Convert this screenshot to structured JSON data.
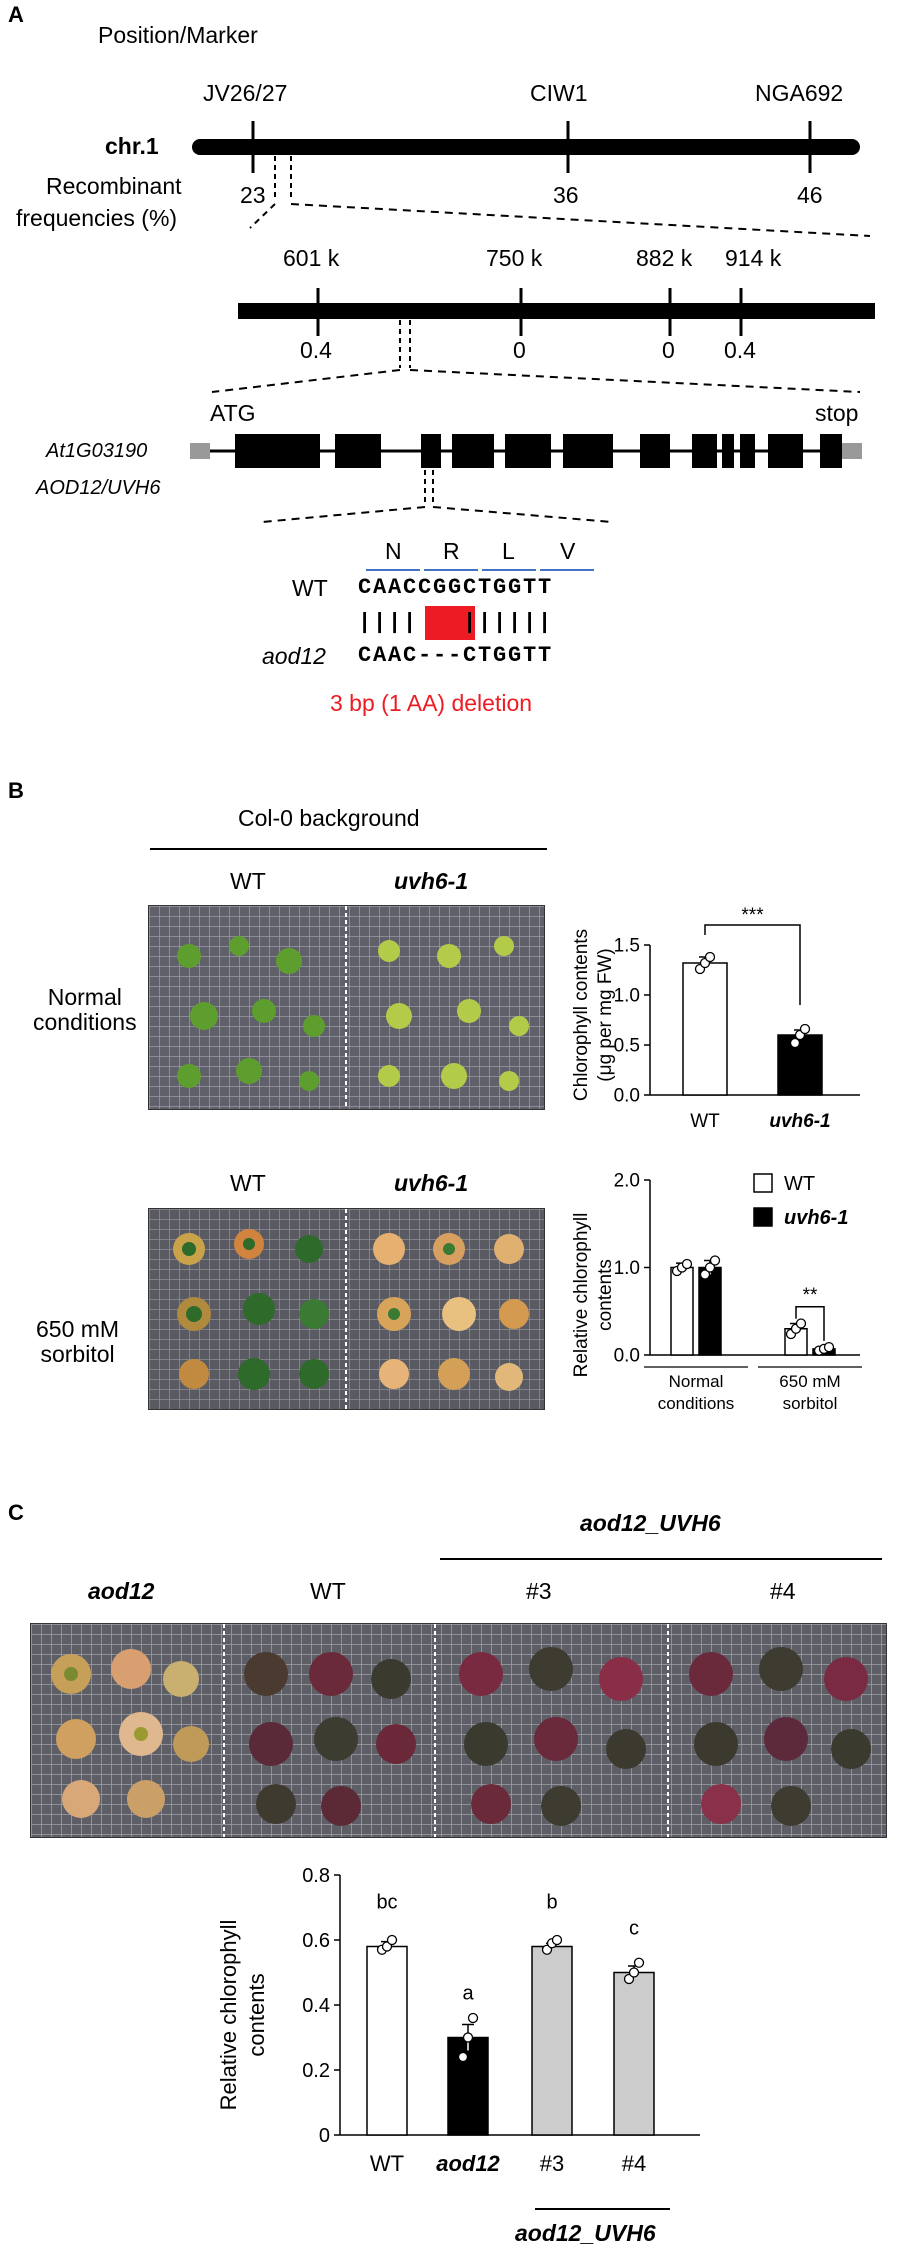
{
  "panelA": {
    "letter": "A",
    "position_marker": "Position/Marker",
    "chr_label": "chr.1",
    "markers": [
      "JV26/27",
      "CIW1",
      "NGA692"
    ],
    "recomb_label_1": "Recombinant",
    "recomb_label_2": "frequencies (%)",
    "chr_freqs": [
      "23",
      "36",
      "46"
    ],
    "fine_positions": [
      "601 k",
      "750 k",
      "882 k",
      "914 k"
    ],
    "fine_freqs": [
      "0.4",
      "0",
      "0",
      "0.4"
    ],
    "gene_id": "At1G03190",
    "gene_name": "AOD12/UVH6",
    "atg": "ATG",
    "stop": "stop",
    "aa": [
      "N",
      "R",
      "L",
      "V"
    ],
    "wt_label": "WT",
    "wt_seq": "CAACCGGCTGGTT",
    "aln_marks": "||||   ||||||",
    "mut_label": "aod12",
    "mut_seq": "CAAC---CTGGTT",
    "deletion_note": "3 bp (1 AA) deletion"
  },
  "panelB": {
    "letter": "B",
    "background": "Col-0 background",
    "col_wt": "WT",
    "col_mut": "uvh6-1",
    "row1": "Normal\nconditions",
    "row2": "650 mM\nsorbitol",
    "chart1_ylabel": "Chlorophyll contents\n(μg per mg FW)",
    "chart2_ylabel": "Relative chlorophyll\ncontents",
    "legend": [
      "WT",
      "uvh6-1"
    ],
    "group_labels": [
      "Normal\nconditions",
      "650 mM\nsorbitol"
    ],
    "sig1": "***",
    "sig2": "**"
  },
  "panelC": {
    "letter": "C",
    "header": "aod12_UVH6",
    "cols": [
      "aod12",
      "WT",
      "#3",
      "#4"
    ],
    "chart_ylabel": "Relative chlorophyll\ncontents",
    "xgroup": "aod12_UVH6"
  },
  "chart_data": [
    {
      "type": "bar",
      "categories": [
        "WT",
        "uvh6-1"
      ],
      "values": [
        1.32,
        0.6
      ],
      "errors": [
        0.06,
        0.05
      ],
      "points": [
        [
          1.26,
          1.32,
          1.38
        ],
        [
          0.52,
          0.6,
          0.66
        ]
      ],
      "ylabel": "Chlorophyll contents (μg per mg FW)",
      "ylim": [
        0,
        1.5
      ],
      "yticks": [
        "0.0",
        "0.5",
        "1.0",
        "1.5"
      ],
      "colors": [
        "#ffffff",
        "#000000"
      ]
    },
    {
      "type": "bar",
      "groups": [
        "Normal conditions",
        "650 mM sorbitol"
      ],
      "series": [
        {
          "name": "WT",
          "values": [
            1.0,
            0.3
          ],
          "errors": [
            0.05,
            0.06
          ],
          "points": [
            [
              0.96,
              1.0,
              1.04
            ],
            [
              0.24,
              0.3,
              0.36
            ]
          ]
        },
        {
          "name": "uvh6-1",
          "values": [
            1.0,
            0.07
          ],
          "errors": [
            0.08,
            0.02
          ],
          "points": [
            [
              0.92,
              1.0,
              1.08
            ],
            [
              0.05,
              0.07,
              0.09
            ]
          ]
        }
      ],
      "ylabel": "Relative chlorophyll contents",
      "ylim": [
        0,
        2.0
      ],
      "yticks": [
        "0.0",
        "1.0",
        "2.0"
      ],
      "colors": [
        "#ffffff",
        "#000000"
      ]
    },
    {
      "type": "bar",
      "categories": [
        "WT",
        "aod12",
        "#3",
        "#4"
      ],
      "values": [
        0.58,
        0.3,
        0.58,
        0.5
      ],
      "errors": [
        0.015,
        0.04,
        0.01,
        0.02
      ],
      "points": [
        [
          0.57,
          0.58,
          0.6
        ],
        [
          0.24,
          0.3,
          0.36
        ],
        [
          0.57,
          0.59,
          0.6
        ],
        [
          0.48,
          0.5,
          0.53
        ]
      ],
      "letters": [
        "bc",
        "a",
        "b",
        "c"
      ],
      "ylabel": "Relative chlorophyll contents",
      "ylim": [
        0,
        0.8
      ],
      "yticks": [
        "0",
        "0.2",
        "0.4",
        "0.6",
        "0.8"
      ],
      "colors": [
        "#ffffff",
        "#000000",
        "#cccccc",
        "#cccccc"
      ]
    }
  ]
}
